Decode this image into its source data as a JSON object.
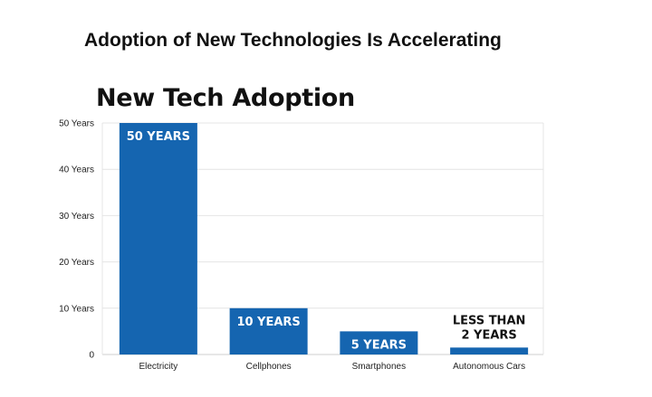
{
  "slide": {
    "title": "Adoption of New Technologies Is Accelerating"
  },
  "colors": {
    "bar": "#1565b0",
    "grid": "#e4e4e4",
    "axis": "#cfcfcf"
  },
  "chart_data": {
    "type": "bar",
    "title": "New Tech Adoption",
    "xlabel": "",
    "ylabel": "",
    "categories": [
      "Electricity",
      "Cellphones",
      "Smartphones",
      "Autonomous Cars"
    ],
    "values": [
      50,
      10,
      5,
      1.5
    ],
    "data_labels": [
      "50 YEARS",
      "10 YEARS",
      "5 YEARS",
      [
        "LESS THAN",
        "2 YEARS"
      ]
    ],
    "y_ticks": [
      "0",
      "10 Years",
      "20 Years",
      "30 Years",
      "40 Years",
      "50 Years"
    ],
    "ylim": [
      0,
      50
    ],
    "grid": true,
    "legend": "none"
  }
}
